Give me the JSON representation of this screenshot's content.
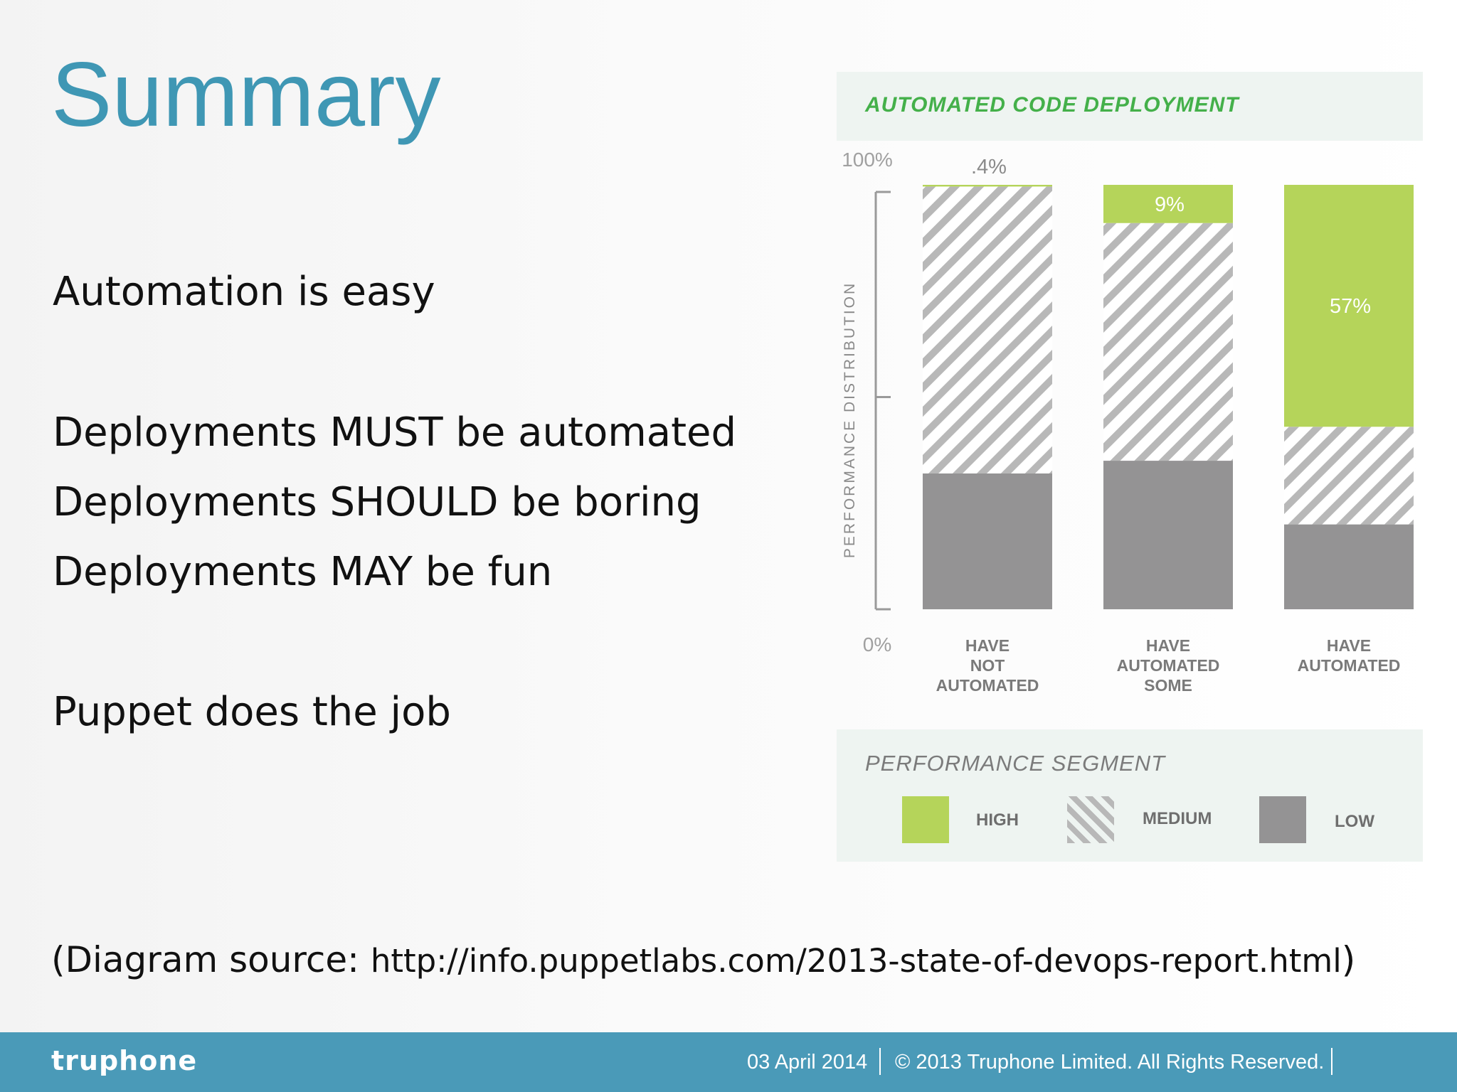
{
  "slide": {
    "title": "Summary",
    "bullets": [
      "Automation is easy",
      "Deployments MUST be automated",
      "Deployments SHOULD be boring",
      "Deployments MAY be fun",
      "Puppet does the job"
    ],
    "source_prefix": "(Diagram source: ",
    "source_url": "http://info.puppetlabs.com/2013-state-of-devops-report.html",
    "source_suffix": ")"
  },
  "footer": {
    "logo": "truphone",
    "date": "03 April 2014",
    "copyright": "© 2013 Truphone Limited. All Rights Reserved."
  },
  "colors": {
    "title": "#3f97b4",
    "high": "#b5d45a",
    "low": "#949394",
    "stripe": "#b8b8b8",
    "footer": "#4a9ab8"
  },
  "chart_data": {
    "type": "bar",
    "stacked": true,
    "title": "AUTOMATED CODE DEPLOYMENT",
    "ylabel": "PERFORMANCE DISTRIBUTION",
    "ytick_labels": [
      "100%",
      "0%"
    ],
    "ylim": [
      0,
      100
    ],
    "categories": [
      [
        "HAVE",
        "NOT",
        "AUTOMATED"
      ],
      [
        "HAVE",
        "AUTOMATED",
        "SOME"
      ],
      [
        "HAVE",
        "AUTOMATED"
      ]
    ],
    "series": [
      {
        "name": "LOW",
        "key": "low",
        "values": [
          32,
          35,
          20
        ]
      },
      {
        "name": "MEDIUM",
        "key": "medium",
        "values": [
          67.6,
          56,
          23
        ]
      },
      {
        "name": "HIGH",
        "key": "high",
        "values": [
          0.4,
          9,
          57
        ]
      }
    ],
    "data_labels": [
      ".4%",
      "9%",
      "57%"
    ],
    "legend": {
      "title": "PERFORMANCE SEGMENT",
      "placement": "bottom",
      "items": [
        {
          "name": "HIGH",
          "key": "high"
        },
        {
          "name": "MEDIUM",
          "key": "medium"
        },
        {
          "name": "LOW",
          "key": "low"
        }
      ]
    }
  }
}
